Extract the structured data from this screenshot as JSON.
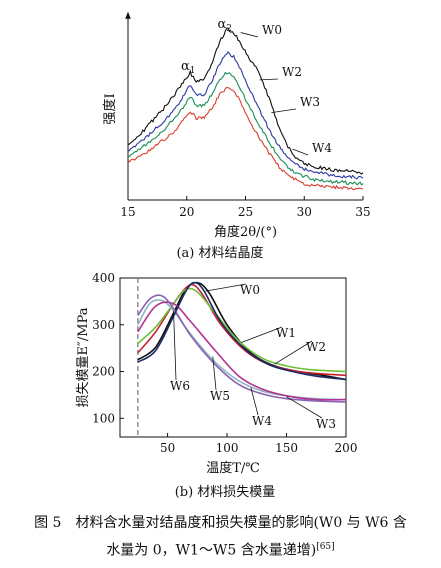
{
  "figure_caption": {
    "line1": "图 5　材料含水量对结晶度和损失模量的影响(W0 与 W6 含",
    "line2": "水量为 0，W1～W5 含水量递增)",
    "ref": "[65]"
  },
  "chart_data": [
    {
      "type": "line",
      "subcaption": "(a) 材料结晶度",
      "xlabel": "角度2θ/(°)",
      "ylabel": "强度I",
      "xlim": [
        15,
        35
      ],
      "xticks": [
        "15",
        "20",
        "25",
        "30",
        "35"
      ],
      "grid": false,
      "annotations": [
        {
          "text": "α1",
          "x": 20.3
        },
        {
          "text": "α2",
          "x": 23.4
        }
      ],
      "series": [
        {
          "name": "W0",
          "color": "#111111",
          "x": [
            15,
            16,
            17,
            18,
            19,
            19.8,
            20.3,
            20.8,
            21.5,
            22.2,
            22.8,
            23.4,
            24.0,
            24.6,
            25.2,
            26.0,
            27.0,
            28.0,
            29.0,
            30.0,
            31.0,
            32.0,
            33.0,
            34.0,
            35.0
          ],
          "y": [
            0.3,
            0.36,
            0.43,
            0.5,
            0.58,
            0.66,
            0.7,
            0.65,
            0.66,
            0.76,
            0.87,
            0.94,
            0.92,
            0.86,
            0.79,
            0.72,
            0.56,
            0.37,
            0.25,
            0.2,
            0.18,
            0.17,
            0.16,
            0.16,
            0.15
          ]
        },
        {
          "name": "W2",
          "color": "#2b3a9e",
          "x": [
            15,
            16,
            17,
            18,
            19,
            19.8,
            20.3,
            20.8,
            21.5,
            22.2,
            22.8,
            23.4,
            24.0,
            24.6,
            25.2,
            26.0,
            27.0,
            28.0,
            29.0,
            30.0,
            31.0,
            32.0,
            33.0,
            34.0,
            35.0
          ],
          "y": [
            0.27,
            0.32,
            0.37,
            0.43,
            0.5,
            0.58,
            0.63,
            0.58,
            0.58,
            0.66,
            0.75,
            0.81,
            0.79,
            0.72,
            0.63,
            0.52,
            0.39,
            0.28,
            0.21,
            0.17,
            0.15,
            0.14,
            0.13,
            0.13,
            0.12
          ]
        },
        {
          "name": "W3",
          "color": "#1a8f57",
          "x": [
            15,
            16,
            17,
            18,
            19,
            19.8,
            20.3,
            20.8,
            21.5,
            22.2,
            22.8,
            23.4,
            24.0,
            24.6,
            25.2,
            26.0,
            27.0,
            28.0,
            29.0,
            30.0,
            31.0,
            32.0,
            33.0,
            34.0,
            35.0
          ],
          "y": [
            0.24,
            0.28,
            0.33,
            0.38,
            0.45,
            0.52,
            0.57,
            0.52,
            0.52,
            0.59,
            0.66,
            0.7,
            0.68,
            0.61,
            0.53,
            0.43,
            0.32,
            0.22,
            0.16,
            0.13,
            0.11,
            0.1,
            0.1,
            0.09,
            0.09
          ]
        },
        {
          "name": "W4",
          "color": "#d6402e",
          "x": [
            15,
            16,
            17,
            18,
            19,
            19.8,
            20.3,
            20.8,
            21.5,
            22.2,
            22.8,
            23.4,
            24.0,
            24.6,
            25.2,
            26.0,
            27.0,
            28.0,
            29.0,
            30.0,
            31.0,
            32.0,
            33.0,
            34.0,
            35.0
          ],
          "y": [
            0.21,
            0.24,
            0.28,
            0.33,
            0.38,
            0.45,
            0.49,
            0.45,
            0.45,
            0.51,
            0.58,
            0.62,
            0.6,
            0.54,
            0.45,
            0.36,
            0.26,
            0.17,
            0.12,
            0.09,
            0.08,
            0.07,
            0.07,
            0.06,
            0.06
          ]
        }
      ]
    },
    {
      "type": "line",
      "subcaption": "(b) 材料损失模量",
      "xlabel": "温度T/℃",
      "ylabel": "损失模量E″/MPa",
      "xlim": [
        10,
        200
      ],
      "ylim": [
        60,
        400
      ],
      "xticks": [
        "50",
        "100",
        "150",
        "200"
      ],
      "yticks": [
        "100",
        "200",
        "300",
        "400"
      ],
      "grid": false,
      "reference_line_x": 25,
      "series": [
        {
          "name": "W0",
          "color": "#111111",
          "x": [
            25,
            40,
            55,
            65,
            75,
            85,
            100,
            120,
            140,
            160,
            180,
            200
          ],
          "y": [
            225,
            252,
            325,
            375,
            390,
            368,
            300,
            240,
            212,
            200,
            192,
            183
          ]
        },
        {
          "name": "W1",
          "color": "#c71f2e",
          "x": [
            25,
            40,
            55,
            65,
            72,
            80,
            95,
            115,
            135,
            155,
            175,
            200
          ],
          "y": [
            240,
            285,
            345,
            378,
            385,
            362,
            300,
            245,
            215,
            202,
            196,
            192
          ]
        },
        {
          "name": "W2",
          "color": "#6fbf3a",
          "x": [
            25,
            40,
            55,
            65,
            75,
            90,
            110,
            130,
            150,
            170,
            200
          ],
          "y": [
            260,
            295,
            345,
            375,
            370,
            325,
            265,
            228,
            212,
            204,
            200
          ]
        },
        {
          "name": "W3",
          "color": "#8fb6c4",
          "x": [
            25,
            35,
            45,
            55,
            70,
            90,
            110,
            130,
            150,
            175,
            200
          ],
          "y": [
            300,
            345,
            352,
            330,
            278,
            220,
            180,
            158,
            148,
            142,
            140
          ]
        },
        {
          "name": "W4",
          "color": "#b2338f",
          "x": [
            25,
            40,
            55,
            70,
            90,
            110,
            130,
            150,
            175,
            200
          ],
          "y": [
            285,
            340,
            345,
            305,
            245,
            190,
            162,
            148,
            140,
            140
          ]
        },
        {
          "name": "W5",
          "color": "#8a62b4",
          "x": [
            25,
            35,
            45,
            55,
            70,
            90,
            110,
            130,
            150,
            175,
            200
          ],
          "y": [
            320,
            355,
            362,
            335,
            275,
            215,
            172,
            152,
            142,
            137,
            135
          ]
        },
        {
          "name": "W6",
          "color": "#1c2a66",
          "x": [
            25,
            40,
            55,
            65,
            72,
            80,
            95,
            115,
            135,
            155,
            175,
            200
          ],
          "y": [
            220,
            245,
            318,
            370,
            390,
            375,
            305,
            248,
            215,
            200,
            190,
            183
          ]
        }
      ]
    }
  ]
}
